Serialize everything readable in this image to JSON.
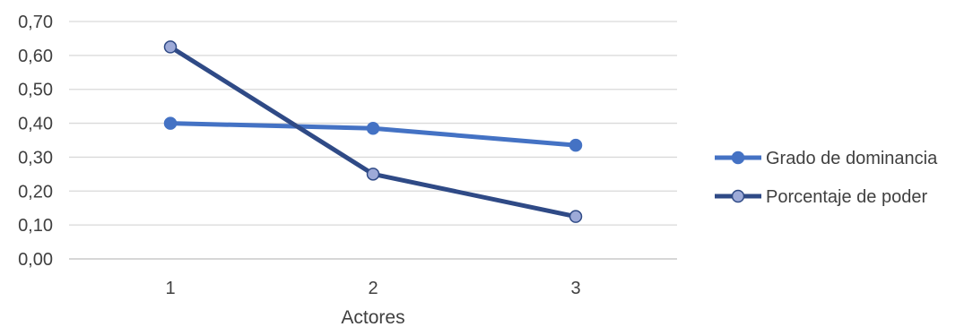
{
  "chart_data": {
    "type": "line",
    "categories": [
      "1",
      "2",
      "3"
    ],
    "y_tick_labels": [
      "0,00",
      "0,10",
      "0,20",
      "0,30",
      "0,40",
      "0,50",
      "0,60",
      "0,70"
    ],
    "ylim": [
      0,
      0.7
    ],
    "xlabel": "Actores",
    "ylabel": "",
    "grid": true,
    "legend_position": "right",
    "series": [
      {
        "name": "Grado de dominancia",
        "values": [
          0.4,
          0.385,
          0.335
        ],
        "color": "#4472C4",
        "marker_fill": "#4472C4"
      },
      {
        "name": "Porcentaje de poder",
        "values": [
          0.625,
          0.25,
          0.125
        ],
        "color": "#2F4A86",
        "marker_fill": "#9DAAD8"
      }
    ]
  }
}
